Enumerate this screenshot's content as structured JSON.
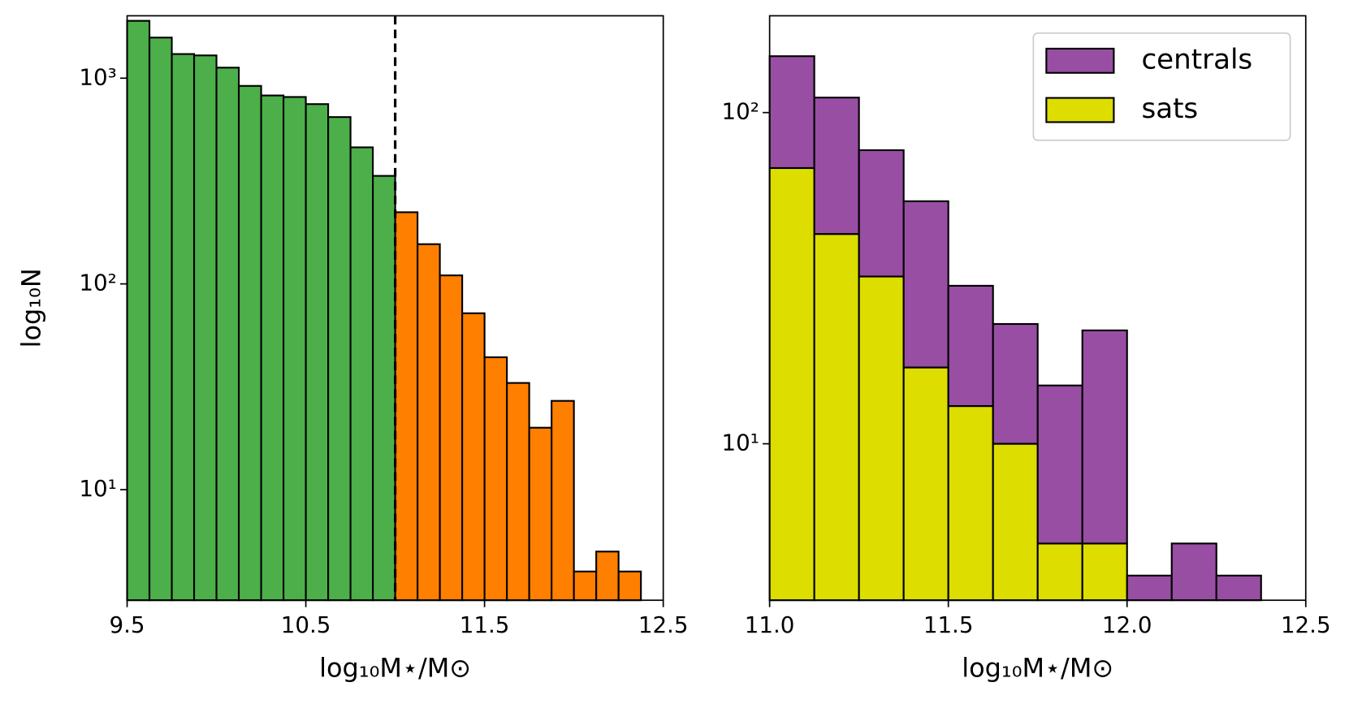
{
  "chart_data": [
    {
      "type": "histogram",
      "xlabel": "log₁₀M⋆/M⊙",
      "ylabel": "log₁₀N",
      "log_y": true,
      "xlim": [
        9.5,
        12.5
      ],
      "xticks": [
        9.5,
        10.5,
        11.5,
        12.5
      ],
      "ylim": [
        2.9,
        2010
      ],
      "yticks": [
        {
          "value": 10,
          "label": "10¹"
        },
        {
          "value": 100,
          "label": "10²"
        },
        {
          "value": 1000,
          "label": "10³"
        }
      ],
      "vline": 11.0,
      "series": [
        {
          "color": "#4daf4a",
          "bins": [
            9.5,
            9.625,
            9.75,
            9.875,
            10.0,
            10.125,
            10.25,
            10.375,
            10.5,
            10.625,
            10.75,
            10.875,
            11.0
          ],
          "values": [
            1900,
            1575,
            1310,
            1290,
            1125,
            917,
            824,
            810,
            748,
            647,
            461,
            335
          ]
        },
        {
          "color": "#ff7f00",
          "bins": [
            11.0,
            11.125,
            11.25,
            11.375,
            11.5,
            11.625,
            11.75,
            11.875,
            12.0,
            12.125,
            12.25,
            12.375
          ],
          "values": [
            223,
            156,
            110,
            72,
            44,
            33,
            20,
            27,
            4,
            5,
            4
          ]
        }
      ]
    },
    {
      "type": "stacked_histogram",
      "xlabel": "log₁₀M⋆/M⊙",
      "log_y": true,
      "xlim": [
        11.0,
        12.5
      ],
      "xticks": [
        {
          "value": 11.0,
          "label": "11.0"
        },
        11.5,
        {
          "value": 12.0,
          "label": "12.0"
        },
        12.5
      ],
      "ylim": [
        3.37,
        196
      ],
      "yticks": [
        {
          "value": 10,
          "label": "10¹"
        },
        {
          "value": 100,
          "label": "10²"
        }
      ],
      "legend": "upper right",
      "bins": [
        11.0,
        11.125,
        11.25,
        11.375,
        11.5,
        11.625,
        11.75,
        11.875,
        12.0,
        12.125,
        12.25,
        12.375
      ],
      "series": [
        {
          "name": "centrals",
          "color": "#984ea3",
          "values": [
            80,
            68,
            45,
            37,
            17,
            13,
            10,
            17,
            4,
            5,
            4
          ]
        },
        {
          "name": "sats",
          "color": "#dddd00",
          "values": [
            68,
            43,
            32,
            17,
            13,
            10,
            5,
            5,
            0,
            0,
            0
          ]
        }
      ]
    }
  ]
}
